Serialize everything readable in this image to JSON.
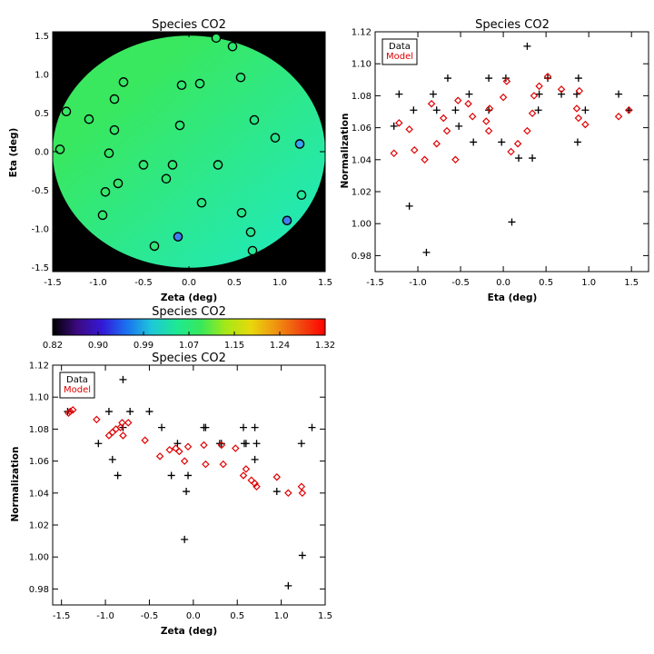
{
  "chart_data": [
    {
      "id": "map",
      "type": "heatmap",
      "title": "Species CO2",
      "xlabel": "Zeta (deg)",
      "ylabel": "Eta (deg)",
      "xlim": [
        -1.5,
        1.5
      ],
      "ylim": [
        -1.55,
        1.55
      ],
      "x_ticks": [
        -1.5,
        -1.0,
        -0.5,
        0.0,
        0.5,
        1.0,
        1.5
      ],
      "y_ticks": [
        -1.5,
        -1.0,
        -0.5,
        0.0,
        0.5,
        1.0,
        1.5
      ],
      "x_tick_labels": [
        "-1.5",
        "-1.0",
        "-0.5",
        "0.0",
        "0.5",
        "1.0",
        "1.5"
      ],
      "y_tick_labels": [
        "-1.5",
        "-1.0",
        "-0.5",
        "0.0",
        "0.5",
        "1.0",
        "1.5"
      ],
      "field": {
        "outside_color": "#000000",
        "disk_radius": 1.5,
        "model_color_upper_left": "#39e85e",
        "model_color_lower_right": "#1ee9c5"
      },
      "points": [
        {
          "x": -1.42,
          "y": 0.03,
          "color": "#38e860"
        },
        {
          "x": -1.35,
          "y": 0.52,
          "color": "#36e863"
        },
        {
          "x": -1.1,
          "y": 0.42,
          "color": "#34e867"
        },
        {
          "x": -0.95,
          "y": -0.82,
          "color": "#33e870"
        },
        {
          "x": -0.92,
          "y": -0.52,
          "color": "#35e86a"
        },
        {
          "x": -0.88,
          "y": -0.02,
          "color": "#34e868"
        },
        {
          "x": -0.82,
          "y": 0.68,
          "color": "#34e866"
        },
        {
          "x": -0.82,
          "y": 0.28,
          "color": "#33e86a"
        },
        {
          "x": -0.78,
          "y": -0.41,
          "color": "#35e86b"
        },
        {
          "x": -0.72,
          "y": 0.9,
          "color": "#37e864"
        },
        {
          "x": -0.5,
          "y": -0.17,
          "color": "#31e872"
        },
        {
          "x": -0.38,
          "y": -1.22,
          "color": "#30e87a"
        },
        {
          "x": -0.25,
          "y": -0.35,
          "color": "#2fe874"
        },
        {
          "x": -0.18,
          "y": -0.17,
          "color": "#30e874"
        },
        {
          "x": -0.1,
          "y": 0.34,
          "color": "#2ee877"
        },
        {
          "x": -0.08,
          "y": 0.86,
          "color": "#30e870"
        },
        {
          "x": -0.12,
          "y": -1.1,
          "color": "#3f7ff0"
        },
        {
          "x": 0.12,
          "y": 0.88,
          "color": "#2fe873"
        },
        {
          "x": 0.14,
          "y": -0.66,
          "color": "#2ae882"
        },
        {
          "x": 0.3,
          "y": 1.47,
          "color": "#2fe86a"
        },
        {
          "x": 0.32,
          "y": -0.17,
          "color": "#2ae884"
        },
        {
          "x": 0.48,
          "y": 1.36,
          "color": "#2ce870"
        },
        {
          "x": 0.57,
          "y": 0.96,
          "color": "#2ae87a"
        },
        {
          "x": 0.58,
          "y": -0.79,
          "color": "#27e88d"
        },
        {
          "x": 0.68,
          "y": -1.04,
          "color": "#27e892"
        },
        {
          "x": 0.7,
          "y": -1.28,
          "color": "#26e896"
        },
        {
          "x": 0.72,
          "y": 0.41,
          "color": "#28e884"
        },
        {
          "x": 0.95,
          "y": 0.18,
          "color": "#24e88f"
        },
        {
          "x": 1.08,
          "y": -0.89,
          "color": "#3f7ff0"
        },
        {
          "x": 1.22,
          "y": 0.1,
          "color": "#3aa5f0"
        },
        {
          "x": 1.24,
          "y": -0.56,
          "color": "#23e89a"
        }
      ]
    },
    {
      "id": "colorbar",
      "type": "heatmap",
      "title": "Species CO2",
      "range": [
        0.82,
        1.32
      ],
      "tick_labels": [
        "0.82",
        "0.90",
        "0.99",
        "1.07",
        "1.15",
        "1.24",
        "1.32"
      ],
      "colormap": [
        "#000000",
        "#3c0a80",
        "#3418d8",
        "#1a73f0",
        "#1ec8d8",
        "#1ee894",
        "#38e85a",
        "#a6e816",
        "#e8d80c",
        "#f09410",
        "#f04a10",
        "#ff0000"
      ]
    },
    {
      "id": "eta",
      "type": "scatter",
      "title": "Species CO2",
      "xlabel": "Eta (deg)",
      "ylabel": "Normalization",
      "xlim": [
        -1.5,
        1.7
      ],
      "ylim": [
        0.97,
        1.12
      ],
      "x_ticks": [
        -1.5,
        -1.0,
        -0.5,
        0.0,
        0.5,
        1.0,
        1.5
      ],
      "y_ticks": [
        0.98,
        1.0,
        1.02,
        1.04,
        1.06,
        1.08,
        1.1,
        1.12
      ],
      "x_tick_labels": [
        "-1.5",
        "-1.0",
        "-0.5",
        "0.0",
        "0.5",
        "1.0",
        "1.5"
      ],
      "y_tick_labels": [
        "0.98",
        "1.00",
        "1.02",
        "1.04",
        "1.06",
        "1.08",
        "1.10",
        "1.12"
      ],
      "legend": {
        "position": "top-left",
        "entries": [
          "Data",
          "Model"
        ]
      },
      "series": [
        {
          "name": "Data",
          "marker": "plus",
          "color": "#000000",
          "points": [
            [
              -1.28,
              1.061
            ],
            [
              -1.22,
              1.081
            ],
            [
              -1.1,
              1.011
            ],
            [
              -1.05,
              1.071
            ],
            [
              -0.9,
              0.982
            ],
            [
              -0.82,
              1.081
            ],
            [
              -0.78,
              1.071
            ],
            [
              -0.65,
              1.091
            ],
            [
              -0.56,
              1.071
            ],
            [
              -0.52,
              1.061
            ],
            [
              -0.4,
              1.081
            ],
            [
              -0.35,
              1.051
            ],
            [
              -0.17,
              1.091
            ],
            [
              -0.17,
              1.071
            ],
            [
              -0.02,
              1.051
            ],
            [
              0.03,
              1.091
            ],
            [
              0.1,
              1.001
            ],
            [
              0.18,
              1.041
            ],
            [
              0.28,
              1.111
            ],
            [
              0.34,
              1.041
            ],
            [
              0.41,
              1.071
            ],
            [
              0.42,
              1.081
            ],
            [
              0.52,
              1.091
            ],
            [
              0.68,
              1.081
            ],
            [
              0.86,
              1.081
            ],
            [
              0.88,
              1.091
            ],
            [
              0.87,
              1.051
            ],
            [
              0.96,
              1.071
            ],
            [
              1.35,
              1.081
            ],
            [
              1.47,
              1.071
            ]
          ]
        },
        {
          "name": "Model",
          "marker": "diamond",
          "color": "#e00000",
          "points": [
            [
              -1.28,
              1.044
            ],
            [
              -1.22,
              1.063
            ],
            [
              -1.1,
              1.059
            ],
            [
              -1.04,
              1.046
            ],
            [
              -0.92,
              1.04
            ],
            [
              -0.84,
              1.075
            ],
            [
              -0.78,
              1.05
            ],
            [
              -0.7,
              1.066
            ],
            [
              -0.66,
              1.058
            ],
            [
              -0.56,
              1.04
            ],
            [
              -0.53,
              1.077
            ],
            [
              -0.41,
              1.075
            ],
            [
              -0.36,
              1.067
            ],
            [
              -0.2,
              1.064
            ],
            [
              -0.16,
              1.072
            ],
            [
              -0.17,
              1.058
            ],
            [
              0.0,
              1.079
            ],
            [
              0.04,
              1.089
            ],
            [
              0.09,
              1.045
            ],
            [
              0.17,
              1.05
            ],
            [
              0.28,
              1.058
            ],
            [
              0.34,
              1.069
            ],
            [
              0.36,
              1.08
            ],
            [
              0.42,
              1.086
            ],
            [
              0.52,
              1.092
            ],
            [
              0.68,
              1.084
            ],
            [
              0.86,
              1.072
            ],
            [
              0.88,
              1.066
            ],
            [
              0.89,
              1.083
            ],
            [
              0.96,
              1.062
            ],
            [
              1.35,
              1.067
            ],
            [
              1.47,
              1.071
            ]
          ]
        }
      ]
    },
    {
      "id": "zeta",
      "type": "scatter",
      "title": "Species CO2",
      "xlabel": "Zeta (deg)",
      "ylabel": "Normalization",
      "xlim": [
        -1.6,
        1.5
      ],
      "ylim": [
        0.97,
        1.12
      ],
      "x_ticks": [
        -1.5,
        -1.0,
        -0.5,
        0.0,
        0.5,
        1.0,
        1.5
      ],
      "y_ticks": [
        0.98,
        1.0,
        1.02,
        1.04,
        1.06,
        1.08,
        1.1,
        1.12
      ],
      "x_tick_labels": [
        "-1.5",
        "-1.0",
        "-0.5",
        "0.0",
        "0.5",
        "1.0",
        "1.5"
      ],
      "y_tick_labels": [
        "0.98",
        "1.00",
        "1.02",
        "1.04",
        "1.06",
        "1.08",
        "1.10",
        "1.12"
      ],
      "legend": {
        "position": "top-left",
        "entries": [
          "Data",
          "Model"
        ]
      },
      "series": [
        {
          "name": "Data",
          "marker": "plus",
          "color": "#000000",
          "points": [
            [
              -1.43,
              1.091
            ],
            [
              -1.08,
              1.071
            ],
            [
              -0.96,
              1.091
            ],
            [
              -0.92,
              1.061
            ],
            [
              -0.86,
              1.051
            ],
            [
              -0.8,
              1.081
            ],
            [
              -0.8,
              1.111
            ],
            [
              -0.72,
              1.091
            ],
            [
              -0.5,
              1.091
            ],
            [
              -0.36,
              1.081
            ],
            [
              -0.25,
              1.051
            ],
            [
              -0.18,
              1.071
            ],
            [
              -0.1,
              1.011
            ],
            [
              -0.08,
              1.041
            ],
            [
              -0.06,
              1.051
            ],
            [
              0.12,
              1.081
            ],
            [
              0.14,
              1.081
            ],
            [
              0.3,
              1.071
            ],
            [
              0.32,
              1.071
            ],
            [
              0.57,
              1.081
            ],
            [
              0.58,
              1.071
            ],
            [
              0.6,
              1.071
            ],
            [
              0.7,
              1.081
            ],
            [
              0.7,
              1.061
            ],
            [
              0.72,
              1.071
            ],
            [
              0.95,
              1.041
            ],
            [
              1.08,
              0.982
            ],
            [
              1.23,
              1.071
            ],
            [
              1.24,
              1.001
            ],
            [
              1.35,
              1.081
            ]
          ]
        },
        {
          "name": "Model",
          "marker": "diamond",
          "color": "#e00000",
          "points": [
            [
              -1.42,
              1.09
            ],
            [
              -1.4,
              1.091
            ],
            [
              -1.37,
              1.092
            ],
            [
              -1.1,
              1.086
            ],
            [
              -0.96,
              1.076
            ],
            [
              -0.92,
              1.078
            ],
            [
              -0.88,
              1.08
            ],
            [
              -0.83,
              1.081
            ],
            [
              -0.81,
              1.084
            ],
            [
              -0.8,
              1.076
            ],
            [
              -0.74,
              1.084
            ],
            [
              -0.55,
              1.073
            ],
            [
              -0.38,
              1.063
            ],
            [
              -0.27,
              1.067
            ],
            [
              -0.2,
              1.068
            ],
            [
              -0.16,
              1.066
            ],
            [
              -0.1,
              1.06
            ],
            [
              -0.06,
              1.069
            ],
            [
              0.12,
              1.07
            ],
            [
              0.14,
              1.058
            ],
            [
              0.32,
              1.07
            ],
            [
              0.34,
              1.058
            ],
            [
              0.48,
              1.068
            ],
            [
              0.57,
              1.051
            ],
            [
              0.6,
              1.055
            ],
            [
              0.66,
              1.048
            ],
            [
              0.7,
              1.046
            ],
            [
              0.72,
              1.044
            ],
            [
              0.95,
              1.05
            ],
            [
              1.08,
              1.04
            ],
            [
              1.23,
              1.044
            ],
            [
              1.24,
              1.04
            ]
          ]
        }
      ]
    }
  ]
}
